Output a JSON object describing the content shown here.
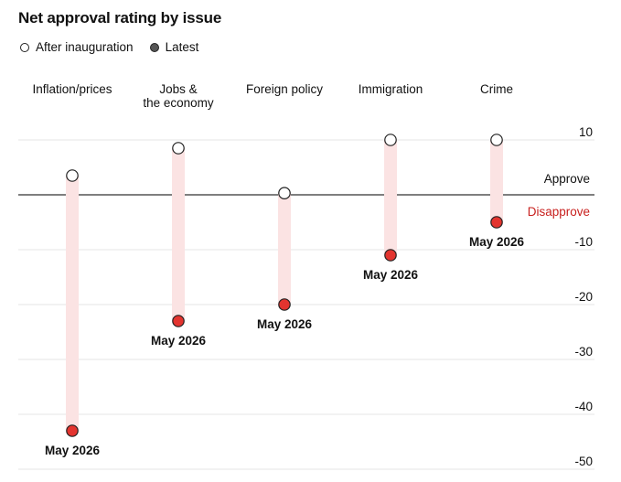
{
  "chart_data": {
    "type": "dumbbell",
    "title": "Net approval rating by issue",
    "legend": [
      {
        "label": "After inauguration",
        "style": "open-circle"
      },
      {
        "label": "Latest",
        "style": "filled-circle"
      }
    ],
    "categories": [
      "Inflation/prices",
      "Jobs &\nthe economy",
      "Foreign policy",
      "Immigration",
      "Crime"
    ],
    "series": [
      {
        "name": "After inauguration",
        "values": [
          3.5,
          8.5,
          0.3,
          10,
          10
        ]
      },
      {
        "name": "Latest",
        "values": [
          -43,
          -23,
          -20,
          -11,
          -5
        ]
      }
    ],
    "point_labels": [
      "May 2026",
      "May 2026",
      "May 2026",
      "May 2026",
      "May 2026"
    ],
    "y_ticks": [
      10,
      -10,
      -20,
      -30,
      -40,
      -50
    ],
    "ylim": [
      -50,
      10
    ],
    "zero_labels": {
      "above": "Approve",
      "below": "Disapprove"
    },
    "colors": {
      "latest_fill": "#e3342f",
      "range_bar": "#fbe3e3",
      "disapprove_text": "#c8201e",
      "grid": "#e6e6e6",
      "zero_line": "#333333"
    },
    "grid": true,
    "legend_position": "top-left"
  }
}
